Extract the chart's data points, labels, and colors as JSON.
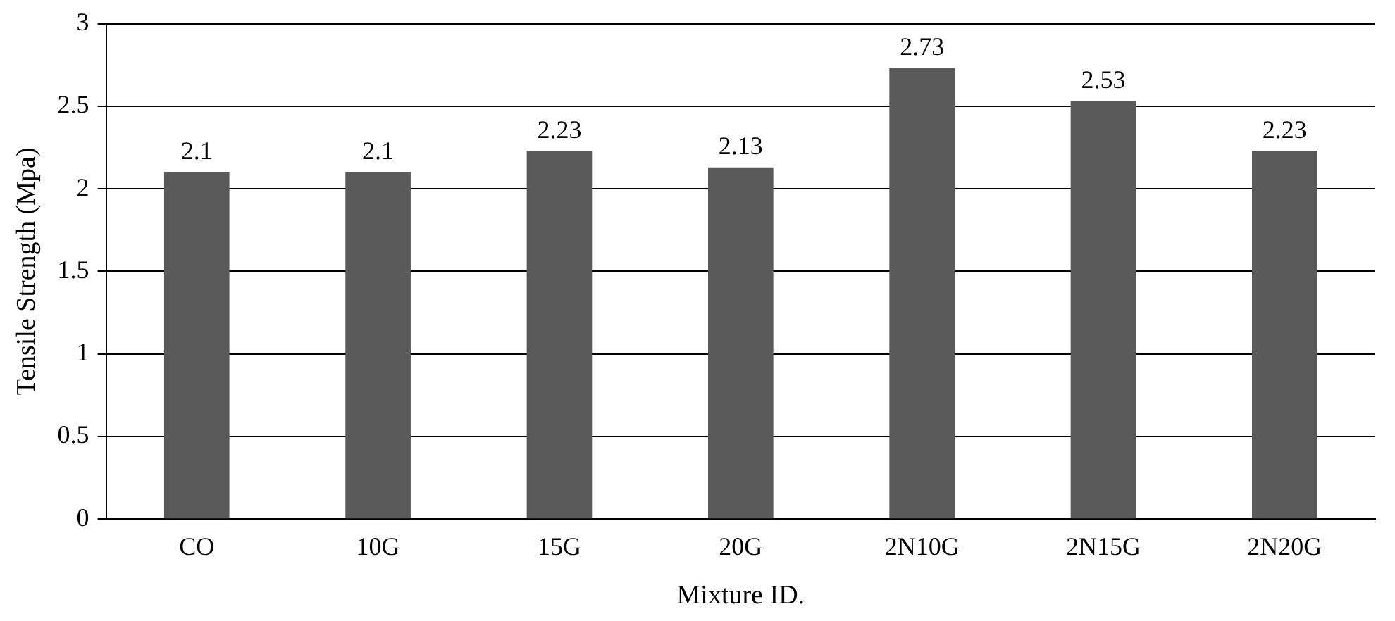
{
  "chart_data": {
    "type": "bar",
    "xlabel": "Mixture ID.",
    "ylabel": "Tensile Strength (Mpa)",
    "categories": [
      "CO",
      "10G",
      "15G",
      "20G",
      "2N10G",
      "2N15G",
      "2N20G"
    ],
    "values": [
      2.1,
      2.1,
      2.23,
      2.13,
      2.73,
      2.53,
      2.23
    ],
    "color": "#595959",
    "ylim": [
      0,
      3
    ],
    "yticks": [
      0,
      0.5,
      1,
      1.5,
      2,
      2.5,
      3
    ],
    "grid": "y",
    "data_labels": true,
    "legend": false
  }
}
